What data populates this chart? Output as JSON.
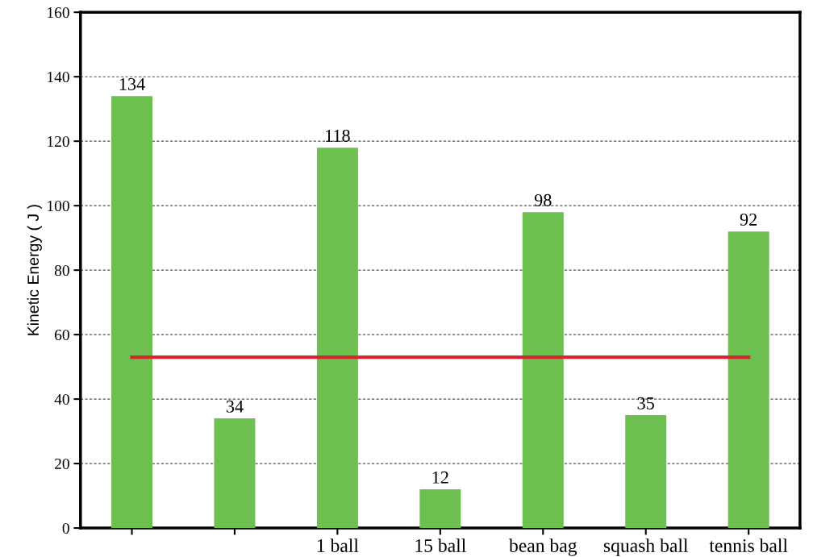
{
  "chart_data": {
    "type": "bar",
    "ylabel": "Kinetic Energy ( J )",
    "categories": [
      null,
      null,
      "1 ball",
      "15 ball",
      "bean bag",
      "squash ball",
      "tennis ball"
    ],
    "values": [
      134,
      34,
      118,
      12,
      98,
      35,
      92
    ],
    "color": "#6dbf4f",
    "ylim": [
      0,
      160
    ],
    "yticks": [
      0,
      20,
      40,
      60,
      80,
      100,
      120,
      140,
      160
    ],
    "grid": "y",
    "data_labels": true,
    "ref_lines": [
      {
        "axis": "y",
        "value": 53,
        "color": "#d9262e"
      }
    ]
  }
}
